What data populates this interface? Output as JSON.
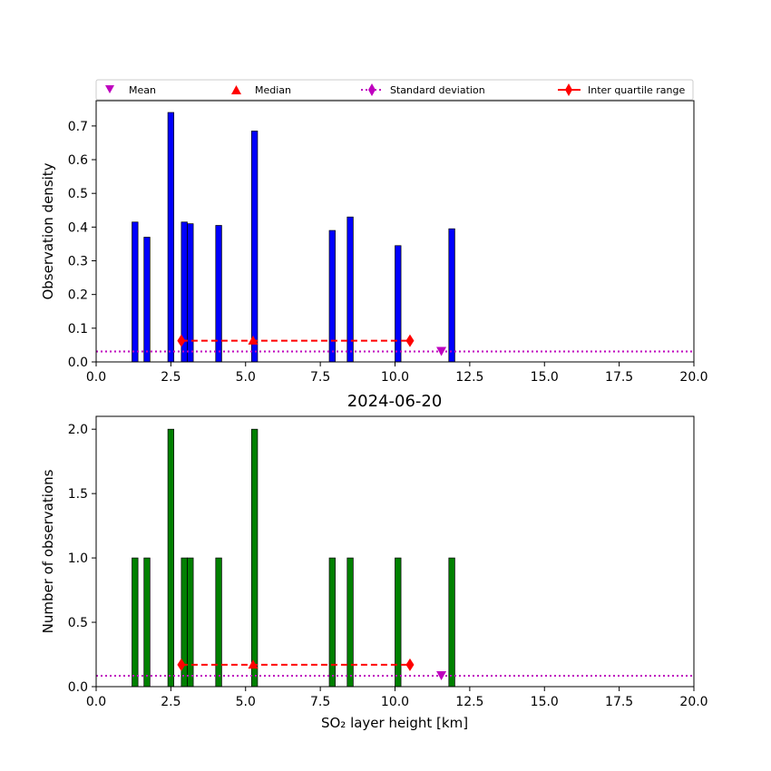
{
  "title": "2024-06-20",
  "legend": {
    "mean": "Mean",
    "median": "Median",
    "std": "Standard deviation",
    "iqr": "Inter quartile range"
  },
  "colors": {
    "density_bars": "#0000ff",
    "count_bars": "#008000",
    "mean": "#bf00bf",
    "median": "#ff0000",
    "std": "#bf00bf",
    "iqr": "#ff0000"
  },
  "chart_data": [
    {
      "type": "bar",
      "ylabel": "Observation density",
      "xlabel": "",
      "xlim": [
        0,
        20
      ],
      "ylim": [
        0,
        0.775
      ],
      "x_ticks": [
        "0.0",
        "2.5",
        "5.0",
        "7.5",
        "10.0",
        "12.5",
        "15.0",
        "17.5",
        "20.0"
      ],
      "y_ticks": [
        "0.0",
        "0.1",
        "0.2",
        "0.3",
        "0.4",
        "0.5",
        "0.6",
        "0.7"
      ],
      "bin_width": 0.2,
      "bars": [
        {
          "x": 1.3,
          "value": 0.415
        },
        {
          "x": 1.7,
          "value": 0.37
        },
        {
          "x": 2.5,
          "value": 0.74
        },
        {
          "x": 2.95,
          "value": 0.415
        },
        {
          "x": 3.15,
          "value": 0.41
        },
        {
          "x": 4.1,
          "value": 0.405
        },
        {
          "x": 5.3,
          "value": 0.685
        },
        {
          "x": 7.9,
          "value": 0.39
        },
        {
          "x": 8.5,
          "value": 0.43
        },
        {
          "x": 10.1,
          "value": 0.345
        },
        {
          "x": 11.9,
          "value": 0.395
        }
      ],
      "mean": {
        "x": 11.55,
        "y": 0.031
      },
      "median": {
        "x": 5.25,
        "y": 0.065
      },
      "std_level": 0.031,
      "iqr": {
        "x1": 2.85,
        "x2": 10.5,
        "y": 0.063
      }
    },
    {
      "type": "bar",
      "ylabel": "Number of observations",
      "xlabel": "SO₂ layer height [km]",
      "xlim": [
        0,
        20
      ],
      "ylim": [
        0,
        2.1
      ],
      "x_ticks": [
        "0.0",
        "2.5",
        "5.0",
        "7.5",
        "10.0",
        "12.5",
        "15.0",
        "17.5",
        "20.0"
      ],
      "y_ticks": [
        "0.0",
        "0.5",
        "1.0",
        "1.5",
        "2.0"
      ],
      "bin_width": 0.2,
      "bars": [
        {
          "x": 1.3,
          "value": 1
        },
        {
          "x": 1.7,
          "value": 1
        },
        {
          "x": 2.5,
          "value": 2
        },
        {
          "x": 2.95,
          "value": 1
        },
        {
          "x": 3.15,
          "value": 1
        },
        {
          "x": 4.1,
          "value": 1
        },
        {
          "x": 5.3,
          "value": 2
        },
        {
          "x": 7.9,
          "value": 1
        },
        {
          "x": 8.5,
          "value": 1
        },
        {
          "x": 10.1,
          "value": 1
        },
        {
          "x": 11.9,
          "value": 1
        }
      ],
      "mean": {
        "x": 11.55,
        "y": 0.085
      },
      "median": {
        "x": 5.25,
        "y": 0.175
      },
      "std_level": 0.085,
      "iqr": {
        "x1": 2.85,
        "x2": 10.5,
        "y": 0.17
      }
    }
  ]
}
